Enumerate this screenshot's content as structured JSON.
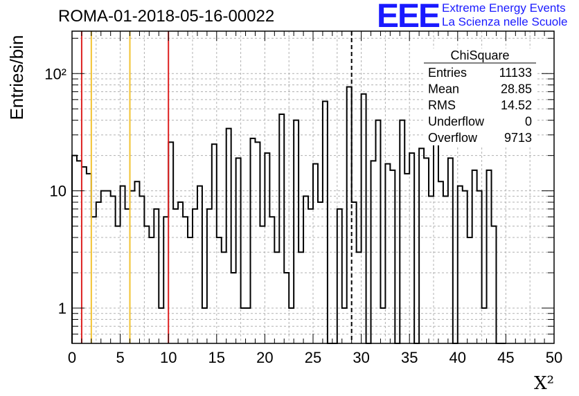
{
  "title": "ROMA-01-2018-05-16-00022",
  "logo": {
    "mark": "EEE",
    "line1": "Extreme Energy Events",
    "line2": "La Scienza nelle Scuole"
  },
  "chart_data": {
    "type": "bar",
    "style": "step-histogram",
    "ylabel": "Entries/bin",
    "xlabel": "X²",
    "xlim": [
      0,
      50
    ],
    "ylim": [
      0.5,
      230
    ],
    "yscale": "log",
    "grid": true,
    "bin_width": 0.5,
    "x_tick_labels": [
      "0",
      "5",
      "10",
      "15",
      "20",
      "25",
      "30",
      "35",
      "40",
      "45",
      "50"
    ],
    "y_tick_labels": [
      "1",
      "10",
      "10²"
    ],
    "values": [
      20,
      18,
      16,
      14,
      6,
      8,
      10,
      10,
      9,
      5,
      11,
      7,
      10,
      12,
      9,
      5,
      4,
      7,
      1,
      6,
      26,
      7,
      8,
      6,
      4,
      7,
      11,
      1,
      7,
      25,
      4,
      3,
      34,
      2,
      19,
      1,
      1,
      28,
      26,
      5,
      21,
      6,
      3,
      45,
      2,
      1,
      40,
      3,
      9,
      7,
      17,
      8,
      58,
      0,
      0,
      7,
      1,
      77,
      8,
      3,
      67,
      0,
      18,
      40,
      1,
      17,
      15,
      0,
      40,
      14,
      21,
      0,
      23,
      19,
      9,
      40,
      12,
      9,
      19,
      0,
      11,
      10,
      4,
      15,
      10,
      1,
      15,
      5,
      0.5,
      0.5
    ],
    "vertical_lines": [
      {
        "x": 1,
        "color": "#dd2020"
      },
      {
        "x": 2,
        "color": "#f2c230"
      },
      {
        "x": 6,
        "color": "#f2c230"
      },
      {
        "x": 10,
        "color": "#dd2020"
      },
      {
        "x": 29,
        "color": "#000000",
        "dashed": true
      }
    ],
    "stats_box": {
      "title": "ChiSquare",
      "rows": [
        {
          "label": "Entries",
          "value": "11133"
        },
        {
          "label": "Mean",
          "value": "28.85"
        },
        {
          "label": "RMS",
          "value": "14.52"
        },
        {
          "label": "Underflow",
          "value": "0"
        },
        {
          "label": "Overflow",
          "value": "9713"
        }
      ]
    }
  }
}
